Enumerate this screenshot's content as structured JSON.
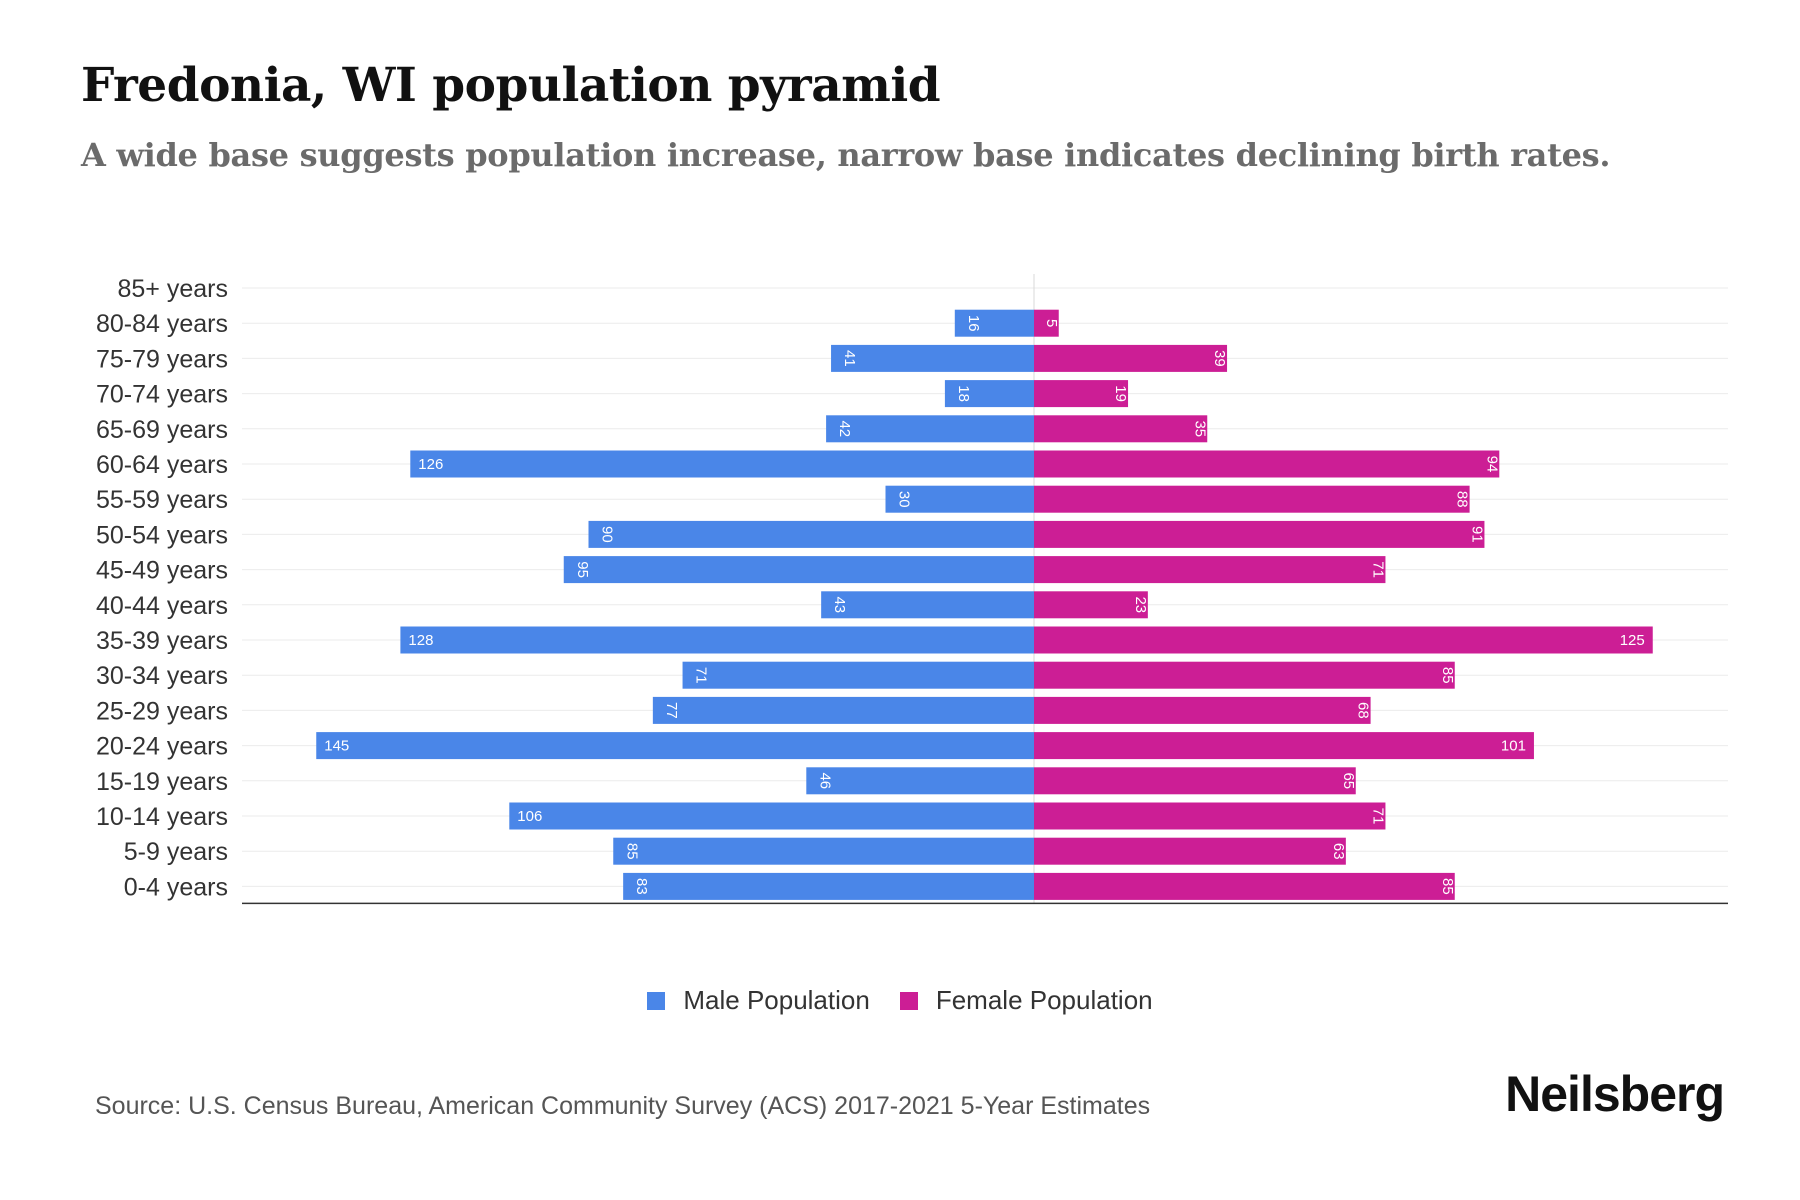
{
  "title": "Fredonia, WI population pyramid",
  "subtitle": "A wide base suggests population increase, narrow base indicates declining birth rates.",
  "source": "Source: U.S. Census Bureau, American Community Survey (ACS) 2017-2021 5-Year Estimates",
  "brand": "Neilsberg",
  "colors": {
    "male": "#4a86e8",
    "female": "#cc1e95"
  },
  "legend": {
    "male": "Male Population",
    "female": "Female Population"
  },
  "chart_data": {
    "type": "bar",
    "orientation": "horizontal-pyramid",
    "categories": [
      "85+ years",
      "80-84 years",
      "75-79 years",
      "70-74 years",
      "65-69 years",
      "60-64 years",
      "55-59 years",
      "50-54 years",
      "45-49 years",
      "40-44 years",
      "35-39 years",
      "30-34 years",
      "25-29 years",
      "20-24 years",
      "15-19 years",
      "10-14 years",
      "5-9 years",
      "0-4 years"
    ],
    "series": [
      {
        "name": "Male Population",
        "values": [
          0,
          16,
          41,
          18,
          42,
          126,
          30,
          90,
          95,
          43,
          128,
          71,
          77,
          145,
          46,
          106,
          85,
          83
        ]
      },
      {
        "name": "Female Population",
        "values": [
          0,
          5,
          39,
          19,
          35,
          94,
          88,
          91,
          71,
          23,
          125,
          85,
          68,
          101,
          65,
          71,
          63,
          85
        ]
      }
    ],
    "xlim": [
      -160,
      140
    ],
    "legend_position": "bottom-center"
  }
}
